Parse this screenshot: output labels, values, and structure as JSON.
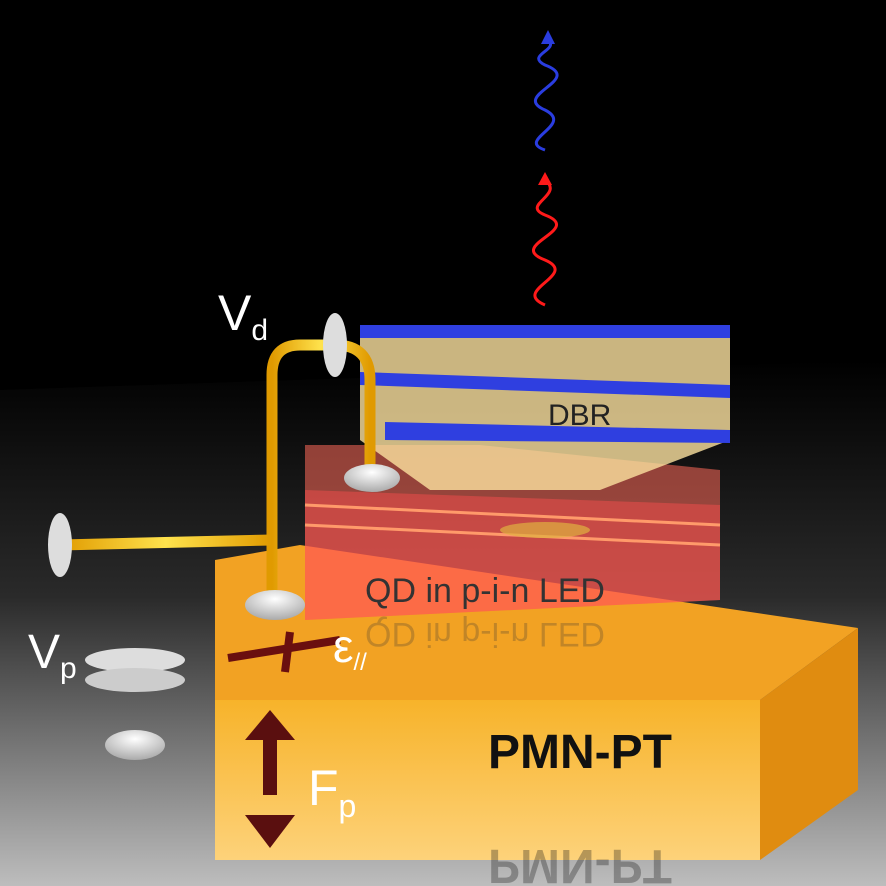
{
  "labels": {
    "drain_voltage": {
      "main": "V",
      "sub": "d"
    },
    "mirror": "DBR",
    "diode": "QD  in  p-i-n  LED",
    "piezo_voltage": {
      "main": "V",
      "sub": "p"
    },
    "strain": {
      "main": "ε",
      "sub": "//"
    },
    "substrate": "PMN-PT",
    "field": {
      "main": "F",
      "sub": "p"
    }
  }
}
